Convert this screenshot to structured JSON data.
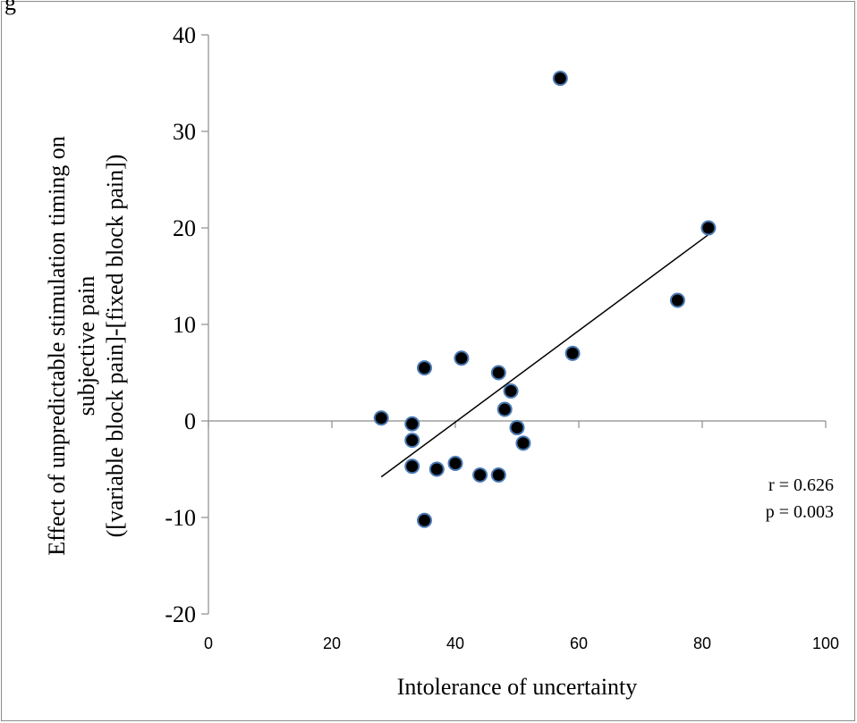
{
  "corner_label": "g",
  "chart_data": {
    "type": "scatter",
    "xlabel": "Intolerance of uncertainty",
    "ylabel_lines": [
      "Effect of unpredictable stimulation timing on",
      "subjective pain",
      "([variable block pain]-[fixed block pain])"
    ],
    "xlim": [
      0,
      100
    ],
    "ylim": [
      -20,
      40
    ],
    "xticks": [
      0,
      20,
      40,
      60,
      80,
      100
    ],
    "yticks": [
      -20,
      -10,
      0,
      10,
      20,
      30,
      40
    ],
    "grid": false,
    "point_color": "#000000",
    "point_edge_color": "#4a7ab5",
    "line_color": "#000000",
    "points": [
      {
        "x": 28,
        "y": 0.3
      },
      {
        "x": 33,
        "y": -0.3
      },
      {
        "x": 33,
        "y": -2.0
      },
      {
        "x": 33,
        "y": -4.7
      },
      {
        "x": 35,
        "y": 5.5
      },
      {
        "x": 35,
        "y": -10.3
      },
      {
        "x": 37,
        "y": -5.0
      },
      {
        "x": 40,
        "y": -4.4
      },
      {
        "x": 41,
        "y": 6.5
      },
      {
        "x": 44,
        "y": -5.6
      },
      {
        "x": 47,
        "y": 5.0
      },
      {
        "x": 47,
        "y": -5.6
      },
      {
        "x": 48,
        "y": 1.2
      },
      {
        "x": 49,
        "y": 3.1
      },
      {
        "x": 50,
        "y": -0.7
      },
      {
        "x": 51,
        "y": -2.3
      },
      {
        "x": 57,
        "y": 35.5
      },
      {
        "x": 59,
        "y": 7.0
      },
      {
        "x": 76,
        "y": 12.5
      },
      {
        "x": 81,
        "y": 20.0
      }
    ],
    "trendline": {
      "x": [
        28,
        81
      ],
      "y": [
        -5.8,
        19.3
      ]
    },
    "annotations": [
      "r = 0.626",
      "p = 0.003"
    ]
  }
}
